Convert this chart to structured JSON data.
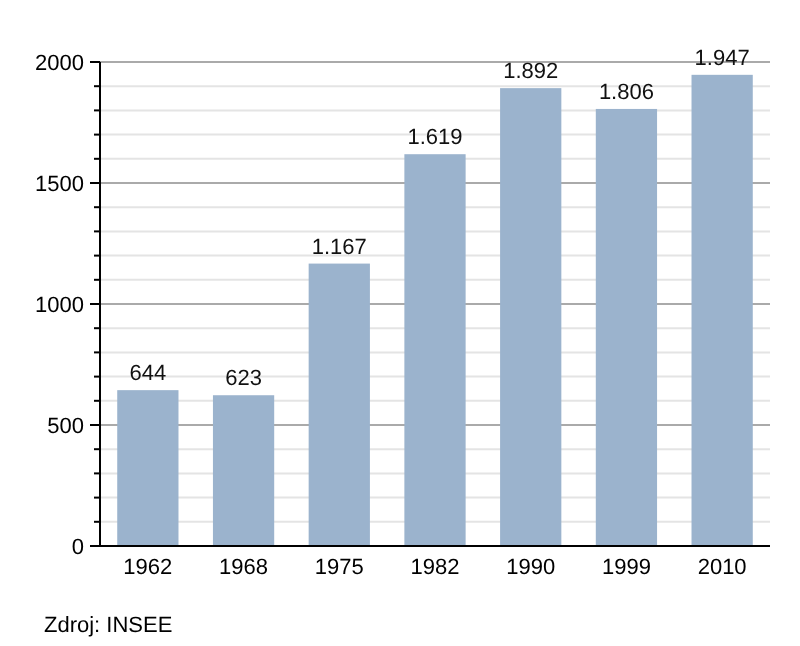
{
  "chart_data": {
    "type": "bar",
    "categories": [
      "1962",
      "1968",
      "1975",
      "1982",
      "1990",
      "1999",
      "2010"
    ],
    "values": [
      644,
      623,
      1167,
      1619,
      1892,
      1806,
      1947
    ],
    "value_labels": [
      "644",
      "623",
      "1.167",
      "1.619",
      "1.892",
      "1.806",
      "1.947"
    ],
    "color": "#9bb3cd",
    "ylim": [
      0,
      2000
    ],
    "yticks": [
      0,
      {
        "value": 100,
        "label": null
      },
      {
        "value": 200,
        "label": null
      },
      {
        "value": 300,
        "label": null
      },
      {
        "value": 400,
        "label": null
      },
      500,
      {
        "value": 600,
        "label": null
      },
      {
        "value": 700,
        "label": null
      },
      {
        "value": 800,
        "label": null
      },
      {
        "value": 900,
        "label": null
      },
      1000,
      {
        "value": 1100,
        "label": null
      },
      {
        "value": 1200,
        "label": null
      },
      {
        "value": 1300,
        "label": null
      },
      {
        "value": 1400,
        "label": null
      },
      1500,
      {
        "value": 1600,
        "label": null
      },
      {
        "value": 1700,
        "label": null
      },
      {
        "value": 1800,
        "label": null
      },
      {
        "value": 1900,
        "label": null
      },
      2000
    ],
    "grid": true,
    "annotations": [
      "Zdroj: INSEE"
    ]
  }
}
